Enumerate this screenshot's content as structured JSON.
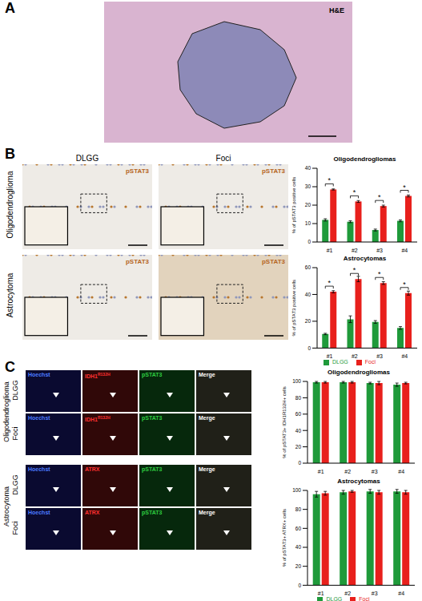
{
  "panels": {
    "A": {
      "label": "A",
      "image_label": "H&E"
    },
    "B": {
      "label": "B",
      "columns": [
        "DLGG",
        "Foci"
      ],
      "rows": [
        "Oligodendroglioma",
        "Astrocytoma"
      ],
      "stain": "pSTAT3"
    },
    "C": {
      "label": "C",
      "groups": [
        {
          "name": "Oligodendroglioma",
          "rows": [
            "DLGG",
            "Foci"
          ],
          "channels": [
            {
              "text": "Hoechst"
            },
            {
              "text": "IDH1",
              "sup": "R132H"
            },
            {
              "text": "pSTAT3"
            },
            {
              "text": "Merge"
            }
          ]
        },
        {
          "name": "Astrocytoma",
          "rows": [
            "DLGG",
            "Foci"
          ],
          "channels": [
            {
              "text": "Hoechst"
            },
            {
              "text": "ATRX"
            },
            {
              "text": "pSTAT3"
            },
            {
              "text": "Merge"
            }
          ]
        }
      ]
    }
  },
  "chart_data": [
    {
      "type": "bar",
      "title": "Oligodendrogliomas",
      "y_label": "% of pSTAT3 positive cells",
      "categories": [
        "#1",
        "#2",
        "#3",
        "#4"
      ],
      "series": [
        {
          "name": "DLGG",
          "color": "#1f9a3a",
          "values": [
            12,
            11,
            6.5,
            11.5
          ],
          "errors": [
            0.6,
            0.5,
            0.5,
            0.5
          ]
        },
        {
          "name": "Foci",
          "color": "#e8201c",
          "values": [
            28.5,
            22,
            19.5,
            25
          ],
          "errors": [
            0.3,
            0.5,
            0.5,
            0.5
          ]
        }
      ],
      "significance": [
        "*",
        "*",
        "*",
        "*"
      ],
      "ylim": [
        0,
        40
      ],
      "yticks": [
        0,
        10,
        20,
        30,
        40
      ]
    },
    {
      "type": "bar",
      "title": "Astrocytomas",
      "y_label": "% of pSTAT3 positive cells",
      "categories": [
        "#1",
        "#2",
        "#3",
        "#4"
      ],
      "series": [
        {
          "name": "DLGG",
          "color": "#1f9a3a",
          "values": [
            10.5,
            21.5,
            19.5,
            15
          ],
          "errors": [
            0.5,
            2.5,
            1,
            1
          ]
        },
        {
          "name": "Foci",
          "color": "#e8201c",
          "values": [
            42,
            51.5,
            48.5,
            41
          ],
          "errors": [
            0.8,
            2,
            1,
            1.5
          ]
        }
      ],
      "significance": [
        "*",
        "*",
        "*",
        "*"
      ],
      "ylim": [
        0,
        60
      ],
      "yticks": [
        0,
        20,
        40,
        60
      ],
      "legend": "bottom"
    },
    {
      "type": "bar",
      "title": "Oligodendrogliomas",
      "y_label": "% of pSTAT3+ IDH1R132H+ cells",
      "categories": [
        "#1",
        "#2",
        "#3",
        "#4"
      ],
      "series": [
        {
          "name": "DLGG",
          "color": "#1f9a3a",
          "values": [
            99,
            99,
            98,
            96
          ],
          "errors": [
            1,
            1,
            1,
            2
          ]
        },
        {
          "name": "Foci",
          "color": "#e8201c",
          "values": [
            99,
            99,
            98,
            98
          ],
          "errors": [
            1,
            1,
            2,
            1
          ]
        }
      ],
      "ylim": [
        0,
        100
      ],
      "yticks": [
        0,
        20,
        40,
        60,
        80,
        100
      ]
    },
    {
      "type": "bar",
      "title": "Astrocytomas",
      "y_label": "% of pSTAT3+ ATRX+ cells",
      "categories": [
        "#1",
        "#2",
        "#3",
        "#4"
      ],
      "series": [
        {
          "name": "DLGG",
          "color": "#1f9a3a",
          "values": [
            96,
            98,
            99,
            99
          ],
          "errors": [
            3,
            2,
            2,
            2
          ]
        },
        {
          "name": "Foci",
          "color": "#e8201c",
          "values": [
            97,
            99,
            98,
            98
          ],
          "errors": [
            2,
            1,
            2,
            2
          ]
        }
      ],
      "ylim": [
        0,
        100
      ],
      "yticks": [
        0,
        20,
        40,
        60,
        80,
        100
      ],
      "legend": "bottom"
    }
  ]
}
